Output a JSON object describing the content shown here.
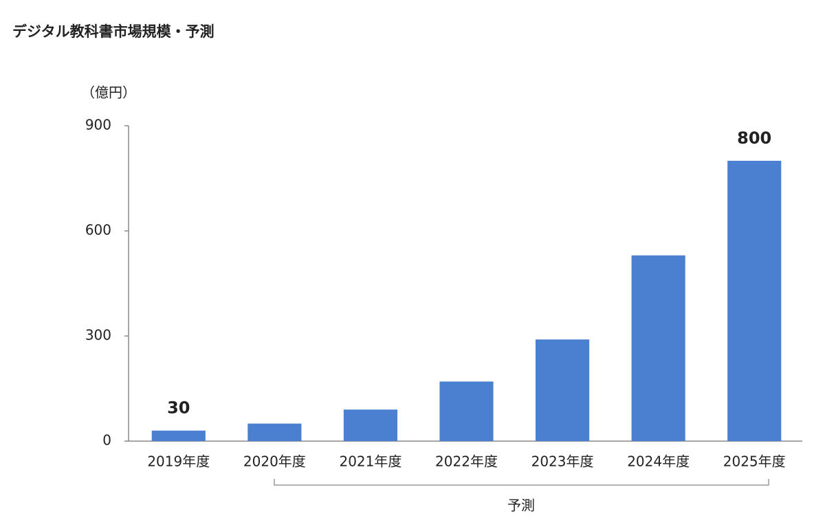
{
  "chart_data": {
    "type": "bar",
    "title": "デジタル教科書市場規模・予測",
    "y_label": "（億円）",
    "categories": [
      "2019年度",
      "2020年度",
      "2021年度",
      "2022年度",
      "2023年度",
      "2024年度",
      "2025年度"
    ],
    "values": [
      30,
      50,
      90,
      170,
      290,
      530,
      800
    ],
    "value_labels": [
      "30",
      null,
      null,
      null,
      null,
      null,
      "800"
    ],
    "color": "#4a80cf",
    "ylim": [
      0,
      900
    ],
    "yticks": [
      0,
      300,
      600,
      900
    ],
    "annotation": "予測",
    "grid": false
  }
}
